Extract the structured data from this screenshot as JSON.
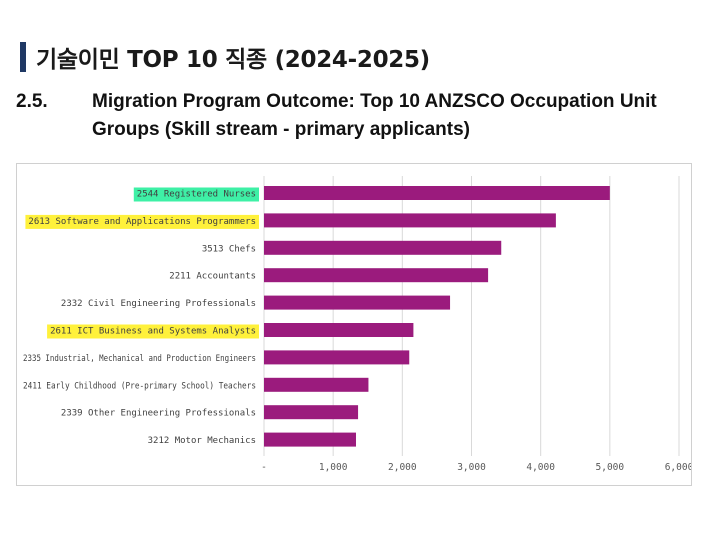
{
  "slide": {
    "title": "기술이민 TOP 10 직종 (2024-2025)"
  },
  "section": {
    "number": "2.5.",
    "heading_line1": "Migration Program Outcome: Top 10 ANZSCO Occupation Unit",
    "heading_line2": "Groups (Skill stream - primary applicants)"
  },
  "chart_data": {
    "type": "bar",
    "orientation": "horizontal",
    "categories": [
      "2544 Registered Nurses",
      "2613 Software and Applications Programmers",
      "3513 Chefs",
      "2211 Accountants",
      "2332 Civil Engineering Professionals",
      "2611 ICT Business and Systems Analysts",
      "2335 Industrial, Mechanical and Production Engineers",
      "2411 Early Childhood (Pre-primary School) Teachers",
      "2339 Other Engineering Professionals",
      "3212 Motor Mechanics"
    ],
    "values": [
      5000,
      4220,
      3430,
      3240,
      2690,
      2160,
      2100,
      1510,
      1360,
      1330
    ],
    "highlights": [
      "green",
      "yellow",
      null,
      null,
      null,
      "yellow",
      null,
      null,
      null,
      null
    ],
    "xlim": [
      0,
      6000
    ],
    "xticks": [
      "-",
      "1,000",
      "2,000",
      "3,000",
      "4,000",
      "5,000",
      "6,000"
    ],
    "grid": true,
    "bar_color": "#9b1b7d",
    "highlight_colors": {
      "green": "#3ef0a6",
      "yellow": "#fff13b"
    }
  }
}
